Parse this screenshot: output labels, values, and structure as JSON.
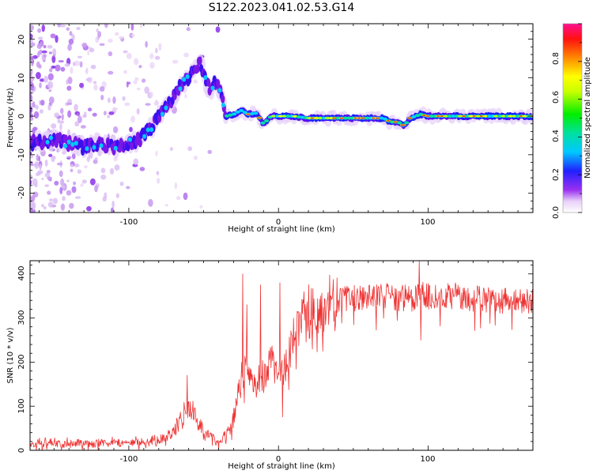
{
  "title": "S122.2023.041.02.53.G14",
  "chart_data": [
    {
      "type": "heatmap",
      "title": "S122.2023.041.02.53.G14",
      "xlabel": "Height of straight line (km)",
      "ylabel": "Frequency (Hz)",
      "xlim": [
        -166,
        170
      ],
      "ylim": [
        -25,
        24
      ],
      "xticks": [
        "-100",
        "0",
        "100"
      ],
      "yticks": [
        "-20",
        "-10",
        "0",
        "10",
        "20"
      ],
      "colorbar": {
        "label": "Normalized spectral amplitude",
        "range": [
          0,
          1
        ],
        "ticks": [
          "0.0",
          "0.2",
          "0.4",
          "0.6",
          "0.8"
        ]
      },
      "ridge": {
        "x": [
          -166,
          -150,
          -140,
          -130,
          -120,
          -110,
          -100,
          -95,
          -90,
          -85,
          -80,
          -75,
          -70,
          -65,
          -60,
          -55,
          -52,
          -48,
          -45,
          -42,
          -38,
          -35,
          -30,
          -25,
          -20,
          -15,
          -10,
          -5,
          0,
          10,
          20,
          40,
          60,
          70,
          75,
          80,
          84,
          88,
          95,
          100,
          120,
          150,
          170
        ],
        "y": [
          -7,
          -6,
          -7,
          -8,
          -7,
          -8,
          -7,
          -6.5,
          -5,
          -3,
          0,
          3,
          5,
          8,
          10,
          12,
          14,
          8,
          7,
          9,
          6,
          0,
          0.5,
          1.5,
          0.5,
          0.8,
          -2,
          0,
          0,
          0,
          -0.5,
          -0.5,
          -0.5,
          -0.5,
          -1.5,
          -1.5,
          -2.5,
          -0.5,
          0.5,
          0,
          0,
          0,
          0
        ]
      }
    },
    {
      "type": "line",
      "xlabel": "Height of straight line (km)",
      "ylabel": "SNR (10 * v/v)",
      "xlim": [
        -166,
        170
      ],
      "ylim": [
        0,
        430
      ],
      "xticks": [
        "-100",
        "0",
        "100"
      ],
      "yticks": [
        "0",
        "100",
        "200",
        "300",
        "400"
      ],
      "series": [
        {
          "color": "#ee3333",
          "envelope": {
            "x": [
              -166,
              -140,
              -100,
              -80,
              -70,
              -64,
              -60,
              -56,
              -50,
              -45,
              -40,
              -35,
              -30,
              -25,
              -20,
              -15,
              -10,
              -5,
              0,
              5,
              10,
              15,
              20,
              25,
              30,
              40,
              50,
              60,
              70,
              80,
              90,
              95,
              100,
              110,
              120,
              130,
              140,
              150,
              160,
              170
            ],
            "y": [
              16,
              16,
              18,
              22,
              45,
              80,
              100,
              85,
              40,
              25,
              22,
              30,
              70,
              160,
              190,
              150,
              170,
              200,
              160,
              200,
              260,
              290,
              310,
              325,
              330,
              340,
              345,
              345,
              350,
              345,
              345,
              360,
              350,
              350,
              350,
              345,
              340,
              340,
              340,
              340
            ]
          },
          "spikes": [
            {
              "x": -61,
              "y": 170
            },
            {
              "x": -24,
              "y": 400
            },
            {
              "x": -21,
              "y": 330
            },
            {
              "x": -12,
              "y": 375
            },
            {
              "x": 1,
              "y": 380
            },
            {
              "x": 94,
              "y": 430
            },
            {
              "x": 95,
              "y": 250
            }
          ]
        }
      ]
    }
  ]
}
